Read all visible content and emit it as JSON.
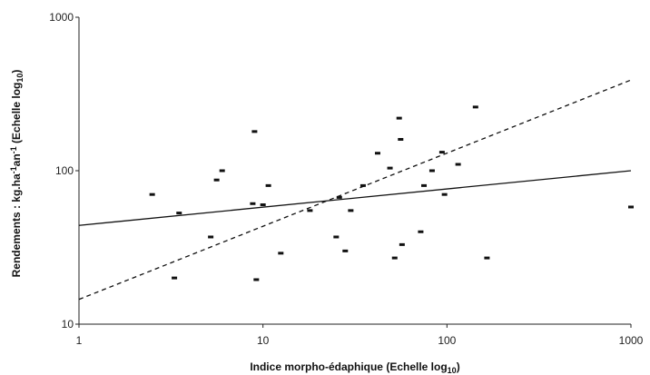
{
  "chart_data": {
    "type": "scatter",
    "xscale": "log",
    "yscale": "log",
    "xlim": [
      1,
      1000
    ],
    "ylim": [
      10,
      1000
    ],
    "xticks": [
      1,
      10,
      100,
      1000
    ],
    "xtick_labels": [
      "1",
      "10",
      "100",
      "1000"
    ],
    "yticks": [
      10,
      100,
      1000
    ],
    "ytick_labels": [
      "10",
      "100",
      "1000"
    ],
    "xlabel": "Indice morpho-édaphique (Echelle log10)",
    "ylabel": "Rendements : kg.ha-1an-1 (Echelle log10)",
    "grid": false,
    "legend": "none",
    "colors": {
      "marks": "#111111",
      "axis": "#222222"
    },
    "points": [
      {
        "x": 2.5,
        "y": 70
      },
      {
        "x": 3.3,
        "y": 20
      },
      {
        "x": 3.5,
        "y": 53
      },
      {
        "x": 5.2,
        "y": 37
      },
      {
        "x": 5.6,
        "y": 87
      },
      {
        "x": 6.0,
        "y": 100
      },
      {
        "x": 8.8,
        "y": 61
      },
      {
        "x": 9.0,
        "y": 180
      },
      {
        "x": 9.2,
        "y": 19.5
      },
      {
        "x": 10.0,
        "y": 60
      },
      {
        "x": 10.7,
        "y": 80
      },
      {
        "x": 12.5,
        "y": 29
      },
      {
        "x": 18,
        "y": 55
      },
      {
        "x": 25,
        "y": 37
      },
      {
        "x": 26,
        "y": 67
      },
      {
        "x": 28,
        "y": 30
      },
      {
        "x": 30,
        "y": 55
      },
      {
        "x": 35,
        "y": 80
      },
      {
        "x": 42,
        "y": 130
      },
      {
        "x": 49,
        "y": 104
      },
      {
        "x": 52,
        "y": 27
      },
      {
        "x": 55,
        "y": 220
      },
      {
        "x": 56,
        "y": 160
      },
      {
        "x": 57,
        "y": 33
      },
      {
        "x": 72,
        "y": 40
      },
      {
        "x": 75,
        "y": 80
      },
      {
        "x": 83,
        "y": 100
      },
      {
        "x": 94,
        "y": 132
      },
      {
        "x": 97,
        "y": 70
      },
      {
        "x": 115,
        "y": 110
      },
      {
        "x": 143,
        "y": 260
      },
      {
        "x": 165,
        "y": 27
      },
      {
        "x": 1000,
        "y": 58
      }
    ],
    "lines": [
      {
        "style": "solid",
        "x": [
          1,
          1000
        ],
        "y": [
          44,
          100
        ]
      },
      {
        "style": "dashed",
        "x": [
          1,
          1000
        ],
        "y": [
          14.5,
          390
        ]
      }
    ]
  }
}
